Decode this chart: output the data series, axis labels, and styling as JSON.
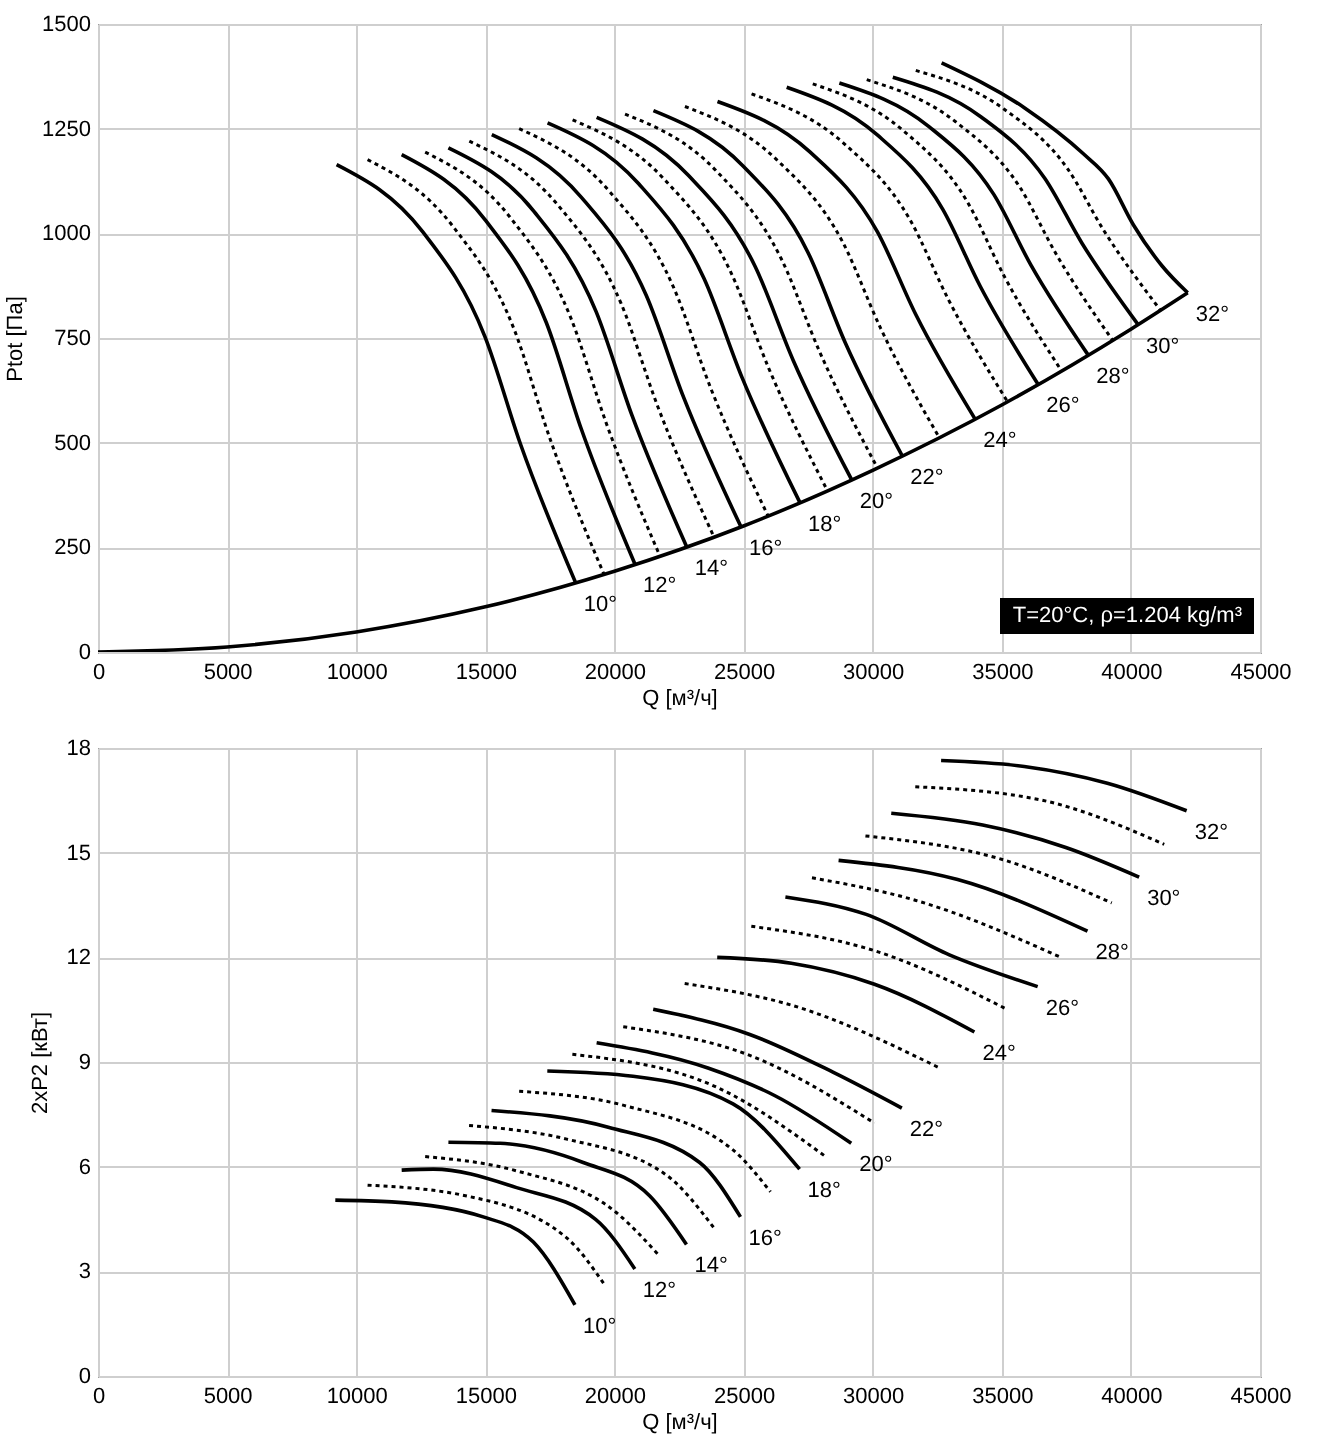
{
  "chart_data": [
    {
      "type": "line",
      "xlabel": "Q [м³/ч]",
      "ylabel": "Ptot [Па]",
      "xlim": [
        0,
        45000
      ],
      "xticks": [
        0,
        5000,
        10000,
        15000,
        20000,
        25000,
        30000,
        35000,
        40000,
        45000
      ],
      "ylim": [
        0,
        1500
      ],
      "yticks": [
        0,
        250,
        500,
        750,
        1000,
        1250,
        1500
      ],
      "grid": true,
      "annotations": [
        "T=20°C, ρ=1.204 kg/m³"
      ],
      "series": [
        {
          "color": "#000000",
          "line_style": "solid",
          "x": [
            0,
            5000,
            10000,
            15000,
            20000,
            25000,
            30000,
            35000,
            40000,
            42200
          ],
          "values": [
            0,
            12,
            48,
            108,
            193,
            301,
            434,
            590,
            771,
            858
          ]
        },
        {
          "name": "10°",
          "color": "#000000",
          "line_style": "solid",
          "x": [
            9240,
            12570,
            14980,
            16370,
            18500
          ],
          "values": [
            1164,
            1004,
            754,
            495,
            165
          ]
        },
        {
          "color": "#000000",
          "line_style": "dotted",
          "x": [
            10440,
            13740,
            16120,
            17490,
            19600
          ],
          "values": [
            1176,
            1017,
            770,
            512,
            185
          ]
        },
        {
          "name": "12°",
          "color": "#000000",
          "line_style": "solid",
          "x": [
            11760,
            15010,
            17360,
            18720,
            20800
          ],
          "values": [
            1188,
            1031,
            787,
            532,
            209
          ]
        },
        {
          "color": "#000000",
          "line_style": "dotted",
          "x": [
            12670,
            15950,
            18310,
            19680,
            21770
          ],
          "values": [
            1194,
            1039,
            798,
            547,
            228
          ]
        },
        {
          "name": "14°",
          "color": "#000000",
          "line_style": "solid",
          "x": [
            13570,
            16890,
            19290,
            20680,
            22800
          ],
          "values": [
            1204,
            1052,
            813,
            565,
            251
          ]
        },
        {
          "color": "#000000",
          "line_style": "dotted",
          "x": [
            14380,
            17790,
            20260,
            21680,
            23860
          ],
          "values": [
            1220,
            1069,
            832,
            586,
            274
          ]
        },
        {
          "name": "16°",
          "color": "#000000",
          "line_style": "solid",
          "x": [
            15250,
            18720,
            21230,
            22680,
            24900
          ],
          "values": [
            1236,
            1086,
            852,
            608,
            299
          ]
        },
        {
          "color": "#000000",
          "line_style": "dotted",
          "x": [
            16310,
            19780,
            22290,
            23730,
            25950
          ],
          "values": [
            1250,
            1102,
            871,
            630,
            325
          ]
        },
        {
          "name": "18°",
          "color": "#000000",
          "line_style": "solid",
          "x": [
            17410,
            20930,
            23470,
            24940,
            27190
          ],
          "values": [
            1264,
            1119,
            892,
            656,
            356
          ]
        },
        {
          "color": "#000000",
          "line_style": "dotted",
          "x": [
            18380,
            21930,
            24500,
            25980,
            28250
          ],
          "values": [
            1271,
            1129,
            908,
            677,
            385
          ]
        },
        {
          "name": "20°",
          "color": "#000000",
          "line_style": "solid",
          "x": [
            19310,
            22870,
            25440,
            26920,
            29190
          ],
          "values": [
            1277,
            1138,
            922,
            697,
            411
          ]
        },
        {
          "color": "#000000",
          "line_style": "dotted",
          "x": [
            20410,
            23930,
            26470,
            27940,
            30190
          ],
          "values": [
            1285,
            1150,
            938,
            718,
            439
          ]
        },
        {
          "name": "22°",
          "color": "#000000",
          "line_style": "solid",
          "x": [
            21510,
            24980,
            27490,
            28930,
            31150
          ],
          "values": [
            1293,
            1161,
            955,
            740,
            468
          ]
        },
        {
          "color": "#000000",
          "line_style": "dotted",
          "x": [
            22730,
            26280,
            28840,
            30310,
            32580
          ],
          "values": [
            1303,
            1176,
            979,
            773,
            512
          ]
        },
        {
          "name": "24°",
          "color": "#000000",
          "line_style": "solid",
          "x": [
            23990,
            27580,
            30180,
            31670,
            33970
          ],
          "values": [
            1315,
            1194,
            1004,
            806,
            556
          ]
        },
        {
          "color": "#000000",
          "line_style": "dotted",
          "x": [
            25310,
            28880,
            31450,
            32940,
            35220
          ],
          "values": [
            1333,
            1215,
            1032,
            841,
            598
          ]
        },
        {
          "name": "26°",
          "color": "#000000",
          "line_style": "solid",
          "x": [
            26670,
            30180,
            32710,
            34170,
            36410
          ],
          "values": [
            1349,
            1235,
            1058,
            873,
            639
          ]
        },
        {
          "color": "#000000",
          "line_style": "dotted",
          "x": [
            27680,
            31150,
            33660,
            35100,
            37320
          ],
          "values": [
            1357,
            1247,
            1076,
            897,
            671
          ]
        },
        {
          "name": "28°",
          "color": "#000000",
          "line_style": "solid",
          "x": [
            28710,
            32180,
            34690,
            36130,
            38350
          ],
          "values": [
            1359,
            1255,
            1093,
            924,
            709
          ]
        },
        {
          "color": "#000000",
          "line_style": "dotted",
          "x": [
            29770,
            33200,
            35680,
            37110,
            39300
          ],
          "values": [
            1367,
            1267,
            1112,
            950,
            744
          ]
        },
        {
          "name": "30°",
          "color": "#000000",
          "line_style": "solid",
          "x": [
            30780,
            34200,
            36670,
            38100,
            40280
          ],
          "values": [
            1373,
            1278,
            1131,
            977,
            782
          ]
        },
        {
          "color": "#000000",
          "line_style": "dotted",
          "x": [
            31670,
            35080,
            37550,
            38970,
            41150
          ],
          "values": [
            1389,
            1297,
            1154,
            1005,
            816
          ]
        },
        {
          "name": "32°",
          "color": "#000000",
          "line_style": "solid",
          "x": [
            32670,
            35900,
            38160,
            39130,
            40100,
            41210,
            42200
          ],
          "values": [
            1407,
            1299,
            1190,
            1130,
            1020,
            922,
            858
          ]
        }
      ]
    },
    {
      "type": "line",
      "xlabel": "Q [м³/ч]",
      "ylabel": "2xP2 [кВт]",
      "xlim": [
        0,
        45000
      ],
      "xticks": [
        0,
        5000,
        10000,
        15000,
        20000,
        25000,
        30000,
        35000,
        40000,
        45000
      ],
      "ylim": [
        0,
        18
      ],
      "yticks": [
        0,
        3,
        6,
        9,
        12,
        15,
        18
      ],
      "grid": true,
      "series": [
        {
          "name": "10°",
          "color": "#000000",
          "line_style": "solid",
          "x": [
            9190,
            11380,
            14920,
            16860,
            18470
          ],
          "values": [
            5.04,
            4.99,
            4.56,
            3.84,
            2.04
          ]
        },
        {
          "color": "#000000",
          "line_style": "dotted",
          "x": [
            10440,
            14280,
            18150,
            19660
          ],
          "values": [
            5.47,
            5.16,
            3.96,
            2.57
          ]
        },
        {
          "name": "12°",
          "color": "#000000",
          "line_style": "solid",
          "x": [
            11760,
            12990,
            16210,
            19270,
            20790
          ],
          "values": [
            5.9,
            5.93,
            5.4,
            4.49,
            3.07
          ]
        },
        {
          "color": "#000000",
          "line_style": "dotted",
          "x": [
            12670,
            16210,
            20080,
            21760
          ],
          "values": [
            6.29,
            5.88,
            4.68,
            3.43
          ]
        },
        {
          "name": "14°",
          "color": "#000000",
          "line_style": "solid",
          "x": [
            13570,
            15570,
            18790,
            21370,
            22790
          ],
          "values": [
            6.7,
            6.67,
            6.12,
            5.16,
            3.77
          ]
        },
        {
          "color": "#000000",
          "line_style": "dotted",
          "x": [
            14370,
            18150,
            22010,
            23850
          ],
          "values": [
            7.18,
            6.79,
            5.76,
            4.25
          ]
        },
        {
          "name": "16°",
          "color": "#000000",
          "line_style": "solid",
          "x": [
            15240,
            19760,
            23300,
            24880
          ],
          "values": [
            7.61,
            7.13,
            6.12,
            4.56
          ]
        },
        {
          "color": "#000000",
          "line_style": "dotted",
          "x": [
            16310,
            20400,
            24590,
            26040
          ],
          "values": [
            8.16,
            7.75,
            6.48,
            5.28
          ]
        },
        {
          "name": "18°",
          "color": "#000000",
          "line_style": "solid",
          "x": [
            17400,
            20720,
            24590,
            27170
          ],
          "values": [
            8.74,
            8.59,
            7.8,
            5.93
          ]
        },
        {
          "color": "#000000",
          "line_style": "dotted",
          "x": [
            18370,
            23950,
            28140
          ],
          "values": [
            9.22,
            8.28,
            6.31
          ]
        },
        {
          "name": "20°",
          "color": "#000000",
          "line_style": "solid",
          "x": [
            19310,
            23620,
            26200,
            29170
          ],
          "values": [
            9.55,
            8.83,
            8.04,
            6.67
          ]
        },
        {
          "color": "#000000",
          "line_style": "dotted",
          "x": [
            20340,
            25240,
            30070
          ],
          "values": [
            10.01,
            9.19,
            7.25
          ]
        },
        {
          "name": "22°",
          "color": "#000000",
          "line_style": "solid",
          "x": [
            21500,
            25240,
            28460,
            31130
          ],
          "values": [
            10.51,
            9.79,
            8.71,
            7.68
          ]
        },
        {
          "color": "#000000",
          "line_style": "dotted",
          "x": [
            22720,
            26850,
            32590
          ],
          "values": [
            11.25,
            10.63,
            8.83
          ]
        },
        {
          "name": "24°",
          "color": "#000000",
          "line_style": "solid",
          "x": [
            23980,
            26850,
            30070,
            33940
          ],
          "values": [
            12.0,
            11.83,
            11.23,
            9.86
          ]
        },
        {
          "color": "#000000",
          "line_style": "dotted",
          "x": [
            25300,
            30070,
            35200
          ],
          "values": [
            12.89,
            12.19,
            10.51
          ]
        },
        {
          "name": "26°",
          "color": "#000000",
          "line_style": "solid",
          "x": [
            26620,
            29750,
            32970,
            36390
          ],
          "values": [
            13.73,
            13.23,
            12.07,
            11.16
          ]
        },
        {
          "color": "#000000",
          "line_style": "dotted",
          "x": [
            27650,
            31680,
            37290
          ],
          "values": [
            14.28,
            13.63,
            12.0
          ]
        },
        {
          "name": "28°",
          "color": "#000000",
          "line_style": "solid",
          "x": [
            28680,
            33290,
            38320
          ],
          "values": [
            14.78,
            14.23,
            12.75
          ]
        },
        {
          "color": "#000000",
          "line_style": "dotted",
          "x": [
            29720,
            34900,
            39260
          ],
          "values": [
            15.48,
            14.83,
            13.56
          ]
        },
        {
          "name": "30°",
          "color": "#000000",
          "line_style": "solid",
          "x": [
            30720,
            34260,
            37480,
            40320
          ],
          "values": [
            16.13,
            15.79,
            15.15,
            14.3
          ]
        },
        {
          "color": "#000000",
          "line_style": "dotted",
          "x": [
            31650,
            36520,
            41290
          ],
          "values": [
            16.89,
            16.51,
            15.24
          ]
        },
        {
          "name": "32°",
          "color": "#000000",
          "line_style": "solid",
          "x": [
            32650,
            35870,
            39090,
            42160
          ],
          "values": [
            17.64,
            17.47,
            16.99,
            16.2
          ]
        }
      ]
    }
  ]
}
